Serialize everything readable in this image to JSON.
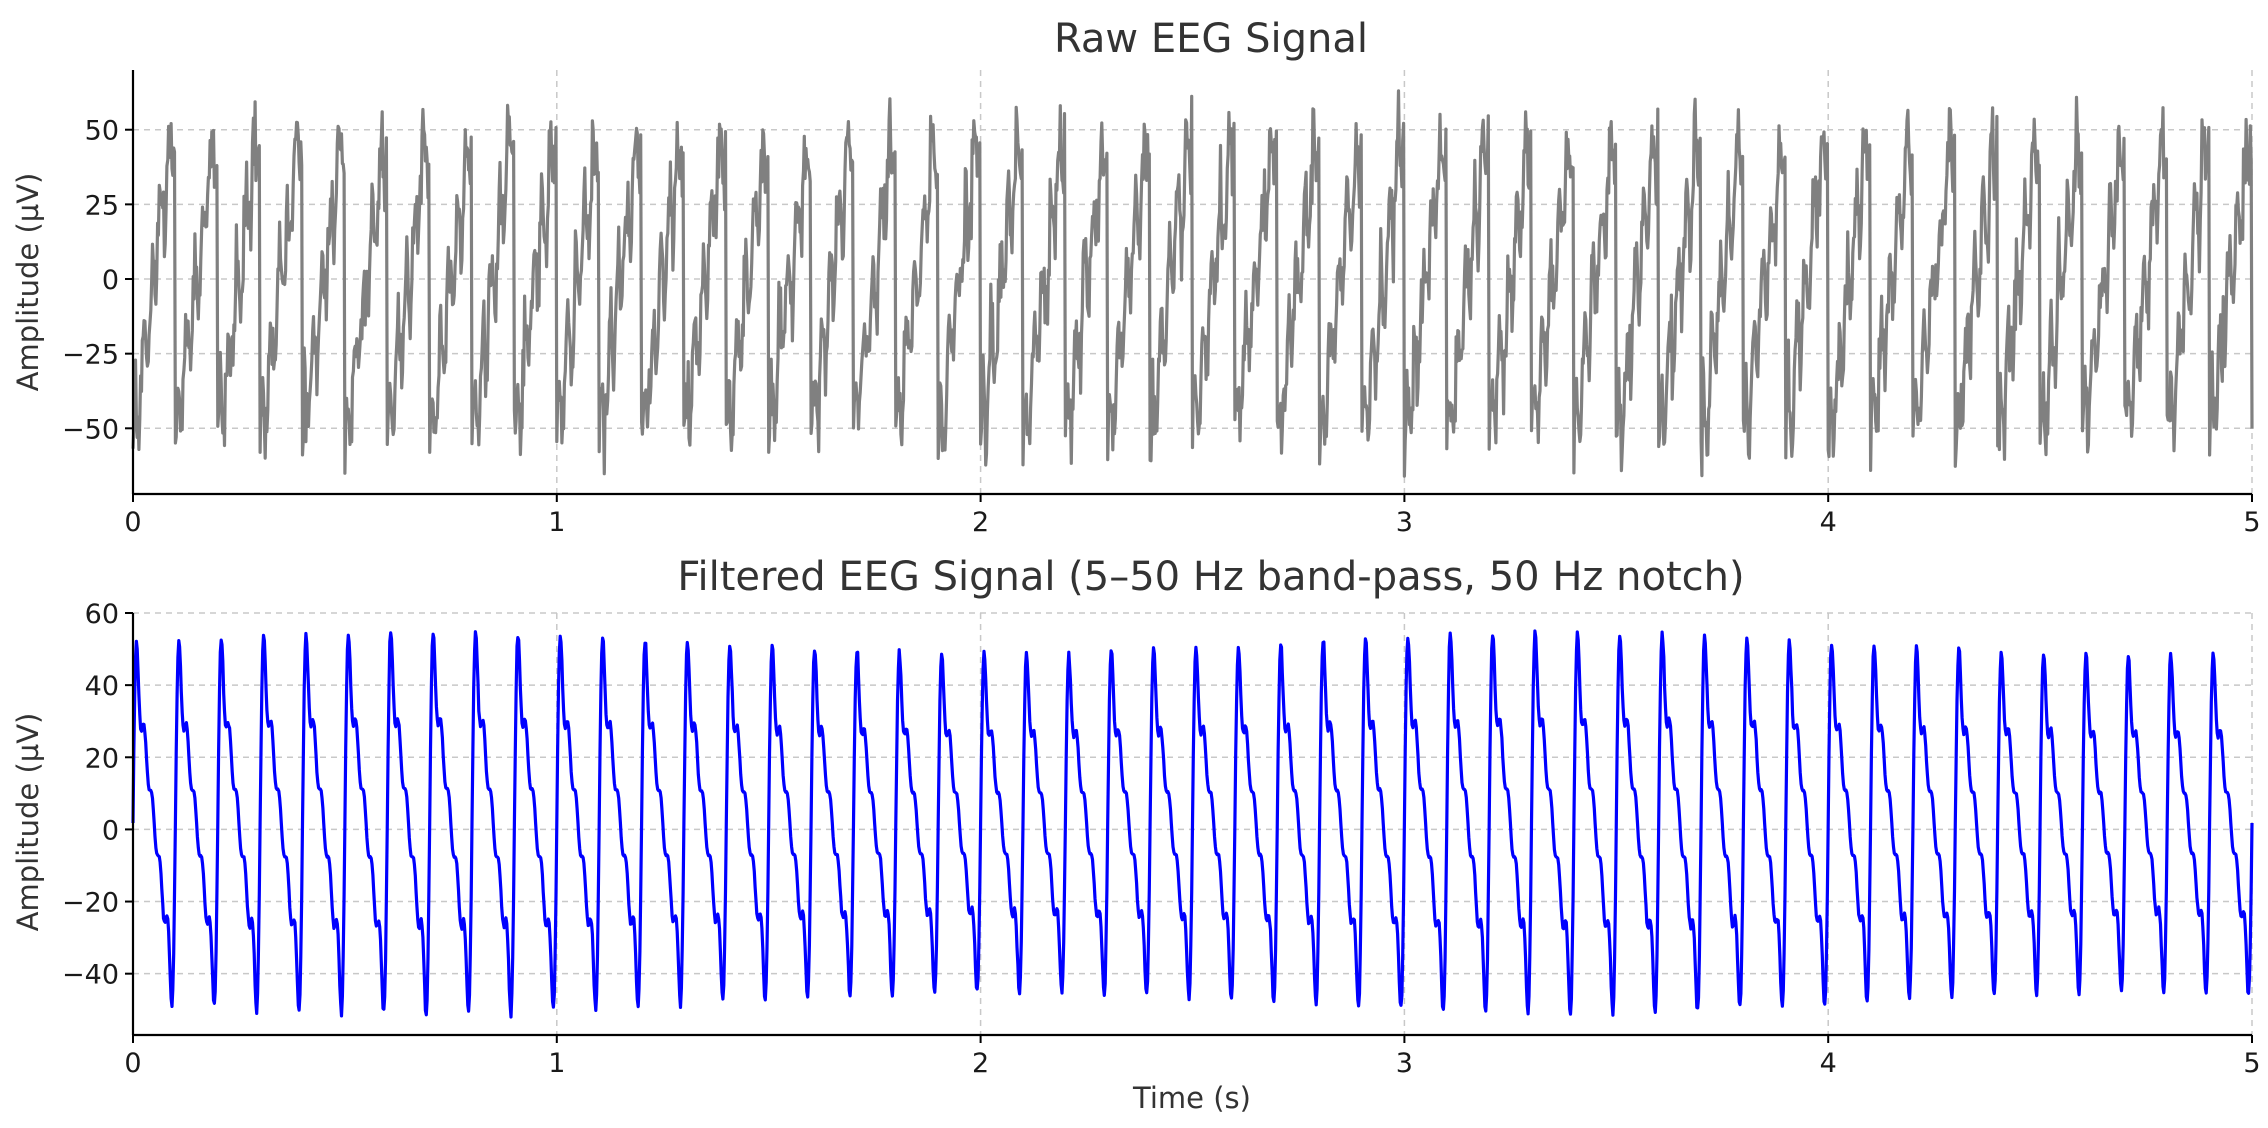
{
  "chart_data": [
    {
      "type": "line",
      "title": "Raw EEG Signal",
      "xlabel": "",
      "ylabel": "Amplitude (µV)",
      "xlim": [
        0,
        5
      ],
      "ylim": [
        -72,
        70
      ],
      "xticks": [
        0,
        1,
        2,
        3,
        4,
        5
      ],
      "xtick_labels": [
        "0",
        "1",
        "2",
        "3",
        "4",
        "5"
      ],
      "yticks": [
        -50,
        -25,
        0,
        25,
        50
      ],
      "ytick_labels": [
        "−50",
        "−25",
        "0",
        "25",
        "50"
      ],
      "grid": true,
      "series": [
        {
          "color": "#808080",
          "signal": {
            "duration_s": 5,
            "sample_rate_hz": 500,
            "components": [
              {
                "kind": "sawtooth",
                "frequency_hz": 10,
                "amplitude_uv": 45
              },
              {
                "kind": "sine",
                "frequency_hz": 50,
                "amplitude_uv": 10
              },
              {
                "kind": "noise",
                "std_uv": 5
              }
            ],
            "peak_range_uv": [
              -66,
              63
            ]
          }
        }
      ]
    },
    {
      "type": "line",
      "title": "Filtered EEG Signal (5–50 Hz band-pass, 50 Hz notch)",
      "xlabel": "Time (s)",
      "ylabel": "Amplitude (µV)",
      "xlim": [
        0,
        5
      ],
      "ylim": [
        -57,
        60
      ],
      "xticks": [
        0,
        1,
        2,
        3,
        4,
        5
      ],
      "xtick_labels": [
        "0",
        "1",
        "2",
        "3",
        "4",
        "5"
      ],
      "yticks": [
        -40,
        -20,
        0,
        20,
        40,
        60
      ],
      "ytick_labels": [
        "−40",
        "−20",
        "0",
        "20",
        "40",
        "60"
      ],
      "grid": true,
      "series": [
        {
          "color": "#0000ff",
          "signal": {
            "duration_s": 5,
            "sample_rate_hz": 500,
            "components": [
              {
                "kind": "filtered-sawtooth",
                "frequency_hz": 10,
                "amplitude_uv": 47
              }
            ],
            "peak_range_uv": [
              -52,
              55
            ]
          }
        }
      ]
    }
  ]
}
